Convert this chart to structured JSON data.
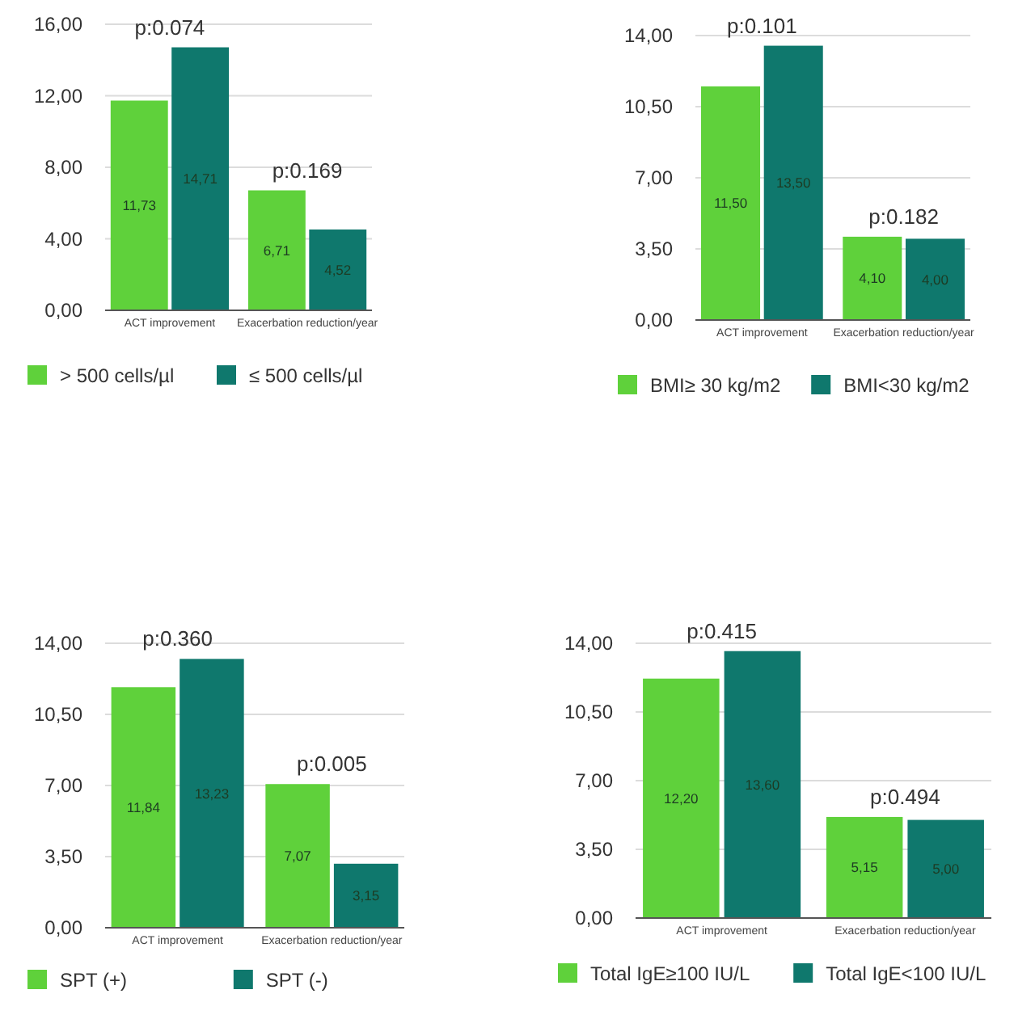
{
  "chart_data": [
    {
      "type": "bar",
      "categories": [
        "ACT improvement",
        "Exacerbation reduction/year"
      ],
      "series": [
        {
          "name": "> 500 cells/µl",
          "color": "#5fd13b",
          "values": [
            11.73,
            6.71
          ],
          "value_labels": [
            "11,73",
            "6,71"
          ]
        },
        {
          "name": "≤ 500 cells/µl",
          "color": "#0f786d",
          "values": [
            14.71,
            4.52
          ],
          "value_labels": [
            "14,71",
            "4,52"
          ]
        }
      ],
      "ylim": [
        0,
        16
      ],
      "yticks": [
        {
          "value": 0,
          "label": "0,00"
        },
        {
          "value": 4,
          "label": "4,00"
        },
        {
          "value": 8,
          "label": "8,00"
        },
        {
          "value": 12,
          "label": "12,00"
        },
        {
          "value": 16,
          "label": "16,00"
        }
      ],
      "grid": "y",
      "legend": "bottom",
      "annotations": [
        {
          "text": "p:0.074",
          "x": "ACT improvement",
          "y": 14.71
        },
        {
          "text": "p:0.169",
          "x": "Exacerbation reduction/year",
          "y": 6.71
        }
      ]
    },
    {
      "type": "bar",
      "categories": [
        "ACT improvement",
        "Exacerbation reduction/year"
      ],
      "series": [
        {
          "name": "BMI≥ 30 kg/m2",
          "color": "#5fd13b",
          "values": [
            11.5,
            4.1
          ],
          "value_labels": [
            "11,50",
            "4,10"
          ]
        },
        {
          "name": "BMI<30 kg/m2",
          "color": "#0f786d",
          "values": [
            13.5,
            4.0
          ],
          "value_labels": [
            "13,50",
            "4,00"
          ]
        }
      ],
      "ylim": [
        0,
        14
      ],
      "yticks": [
        {
          "value": 0,
          "label": "0,00"
        },
        {
          "value": 3.5,
          "label": "3,50"
        },
        {
          "value": 7,
          "label": "7,00"
        },
        {
          "value": 10.5,
          "label": "10,50"
        },
        {
          "value": 14,
          "label": "14,00"
        }
      ],
      "grid": "y",
      "legend": "bottom",
      "annotations": [
        {
          "text": "p:0.101",
          "x": "ACT improvement",
          "y": 13.5
        },
        {
          "text": "p:0.182",
          "x": "Exacerbation reduction/year",
          "y": 4.1
        }
      ]
    },
    {
      "type": "bar",
      "categories": [
        "ACT improvement",
        "Exacerbation reduction/year"
      ],
      "series": [
        {
          "name": "SPT (+)",
          "color": "#5fd13b",
          "values": [
            11.84,
            7.07
          ],
          "value_labels": [
            "11,84",
            "7,07"
          ]
        },
        {
          "name": "SPT (-)",
          "color": "#0f786d",
          "values": [
            13.23,
            3.15
          ],
          "value_labels": [
            "13,23",
            "3,15"
          ]
        }
      ],
      "ylim": [
        0,
        14
      ],
      "yticks": [
        {
          "value": 0,
          "label": "0,00"
        },
        {
          "value": 3.5,
          "label": "3,50"
        },
        {
          "value": 7,
          "label": "7,00"
        },
        {
          "value": 10.5,
          "label": "10,50"
        },
        {
          "value": 14,
          "label": "14,00"
        }
      ],
      "grid": "y",
      "legend": "bottom",
      "annotations": [
        {
          "text": "p:0.360",
          "x": "ACT improvement",
          "y": 13.23
        },
        {
          "text": "p:0.005",
          "x": "Exacerbation reduction/year",
          "y": 7.07
        }
      ]
    },
    {
      "type": "bar",
      "categories": [
        "ACT improvement",
        "Exacerbation reduction/year"
      ],
      "series": [
        {
          "name": "Total IgE≥100 IU/L",
          "color": "#5fd13b",
          "values": [
            12.2,
            5.15
          ],
          "value_labels": [
            "12,20",
            "5,15"
          ]
        },
        {
          "name": "Total IgE<100 IU/L",
          "color": "#0f786d",
          "values": [
            13.6,
            5.0
          ],
          "value_labels": [
            "13,60",
            "5,00"
          ]
        }
      ],
      "ylim": [
        0,
        14
      ],
      "yticks": [
        {
          "value": 0,
          "label": "0,00"
        },
        {
          "value": 3.5,
          "label": "3,50"
        },
        {
          "value": 7,
          "label": "7,00"
        },
        {
          "value": 10.5,
          "label": "10,50"
        },
        {
          "value": 14,
          "label": "14,00"
        }
      ],
      "grid": "y",
      "legend": "bottom",
      "annotations": [
        {
          "text": "p:0.415",
          "x": "ACT improvement",
          "y": 13.6
        },
        {
          "text": "p:0.494",
          "x": "Exacerbation reduction/year",
          "y": 5.15
        }
      ]
    }
  ]
}
